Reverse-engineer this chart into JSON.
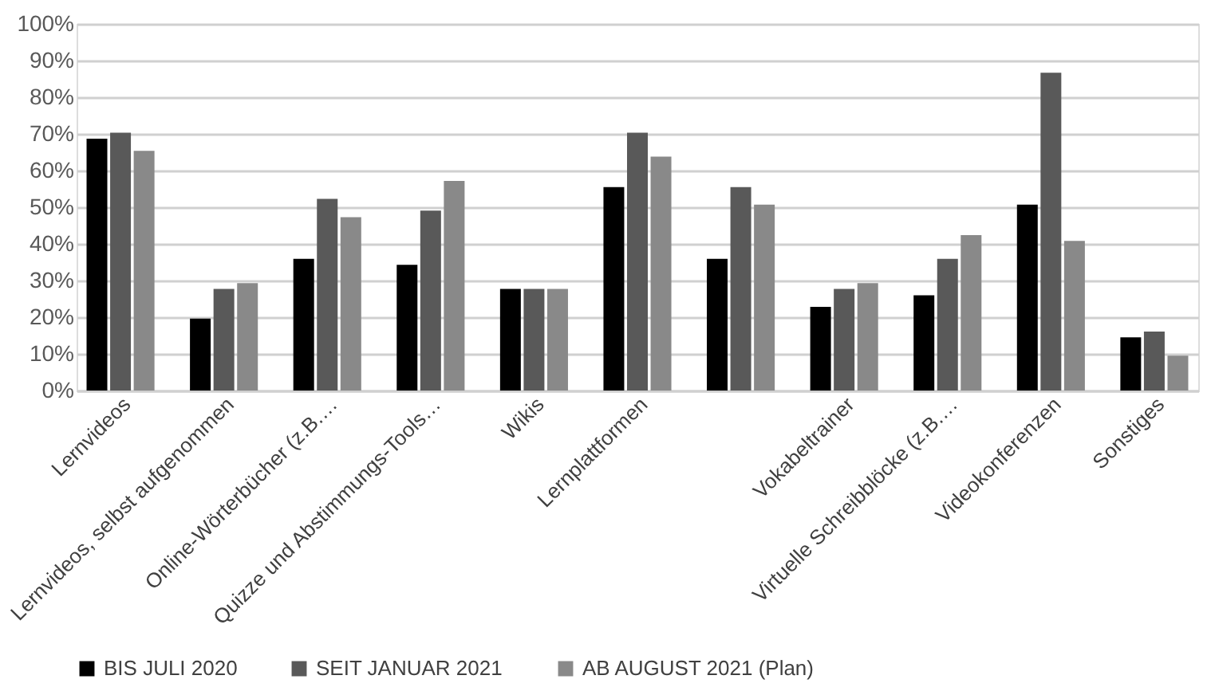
{
  "chart_data": {
    "type": "bar",
    "categories": [
      "Lernvideos",
      "Lernvideos, selbst aufgenommen",
      "Online-Wörterbücher (z.B.…",
      "Quizze und Abstimmungs-Tools…",
      "Wikis",
      "Lernplattformen",
      null,
      "Vokabeltrainer",
      "Virtuelle Schreibblöcke (z.B.…",
      "Videokonferenzen",
      "Sonstiges"
    ],
    "series": [
      {
        "name": "BIS JULI 2020",
        "color": "#000000",
        "values": [
          68.7,
          19.6,
          35.9,
          34.3,
          27.7,
          55.5,
          35.9,
          22.8,
          26,
          50.7,
          14.5
        ]
      },
      {
        "name": "SEIT JANUAR 2021",
        "color": "#595959",
        "values": [
          70.3,
          27.7,
          52.3,
          49.1,
          27.7,
          70.3,
          55.5,
          27.7,
          35.9,
          86.7,
          16.1
        ]
      },
      {
        "name": "AB AUGUST 2021 (Plan)",
        "color": "#898989",
        "values": [
          65.4,
          29.3,
          47.3,
          57.2,
          27.7,
          63.8,
          50.7,
          29.3,
          42.4,
          40.8,
          9.5
        ]
      }
    ],
    "ylim": [
      0,
      100
    ],
    "yticks": [
      {
        "value": 0,
        "label": "0%"
      },
      {
        "value": 10,
        "label": "10%"
      },
      {
        "value": 20,
        "label": "20%"
      },
      {
        "value": 30,
        "label": "30%"
      },
      {
        "value": 40,
        "label": "40%"
      },
      {
        "value": 50,
        "label": "50%"
      },
      {
        "value": 60,
        "label": "60%"
      },
      {
        "value": 70,
        "label": "70%"
      },
      {
        "value": 80,
        "label": "80%"
      },
      {
        "value": 90,
        "label": "90%"
      },
      {
        "value": 100,
        "label": "100%"
      }
    ],
    "grid": "y",
    "legend": "bottom"
  }
}
